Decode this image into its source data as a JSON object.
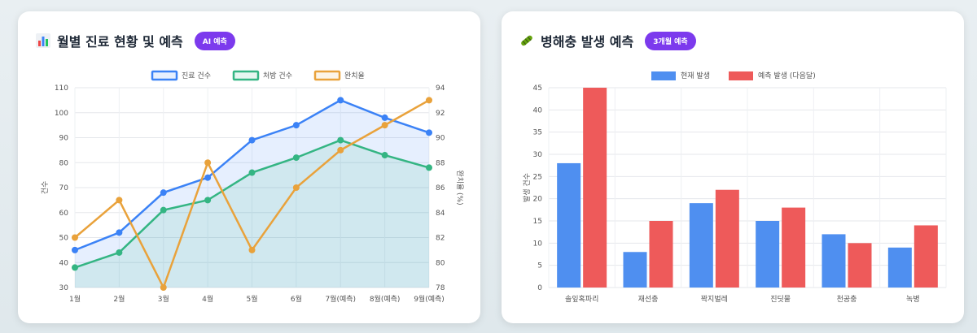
{
  "left_card": {
    "title": "월별 진료 현황 및 예측",
    "badge": "AI 예측",
    "icon": "bar-chart-icon"
  },
  "right_card": {
    "title": "병해충 발생 예측",
    "badge": "3개월 예측",
    "icon": "worm-icon"
  },
  "chart_data": [
    {
      "type": "line",
      "categories": [
        "1월",
        "2월",
        "3월",
        "4월",
        "5월",
        "6월",
        "7월(예측)",
        "8월(예측)",
        "9월(예측)"
      ],
      "series": [
        {
          "name": "진료 건수",
          "axis": "left",
          "color": "#3b82f6",
          "fill": "rgba(59,130,246,0.13)",
          "values": [
            45,
            52,
            68,
            74,
            89,
            95,
            105,
            98,
            92
          ]
        },
        {
          "name": "처방 건수",
          "axis": "left",
          "color": "#34b583",
          "fill": "rgba(52,181,131,0.12)",
          "values": [
            38,
            44,
            61,
            65,
            76,
            82,
            89,
            83,
            78
          ]
        },
        {
          "name": "완치율",
          "axis": "right",
          "color": "#e9a23b",
          "fill": "none",
          "values": [
            82,
            85,
            78,
            88,
            81,
            86,
            89,
            91,
            93
          ]
        }
      ],
      "ylabel": "건수",
      "y2label": "완치율 (%)",
      "ylim": [
        30,
        110
      ],
      "y2lim": [
        78,
        94
      ],
      "yticks": [
        "30",
        "40",
        "50",
        "60",
        "70",
        "80",
        "90",
        "100",
        "110"
      ],
      "y2ticks": [
        "78",
        "80",
        "82",
        "84",
        "86",
        "88",
        "90",
        "92",
        "94"
      ],
      "grid": true,
      "legend": "top-center"
    },
    {
      "type": "bar",
      "categories": [
        "솔잎혹파리",
        "재선충",
        "꽉지벌레",
        "진딧물",
        "천공충",
        "녹병"
      ],
      "series": [
        {
          "name": "현재 발생",
          "color": "#4f8ff0",
          "values": [
            28,
            8,
            19,
            15,
            12,
            9
          ]
        },
        {
          "name": "예측 발생 (다음달)",
          "color": "#ee5a5a",
          "values": [
            45,
            15,
            22,
            18,
            10,
            14
          ]
        }
      ],
      "ylabel": "발생 건수",
      "ylim": [
        0,
        45
      ],
      "yticks": [
        "0",
        "5",
        "10",
        "15",
        "20",
        "25",
        "30",
        "35",
        "40",
        "45"
      ],
      "grid": true,
      "legend": "top-center"
    }
  ]
}
